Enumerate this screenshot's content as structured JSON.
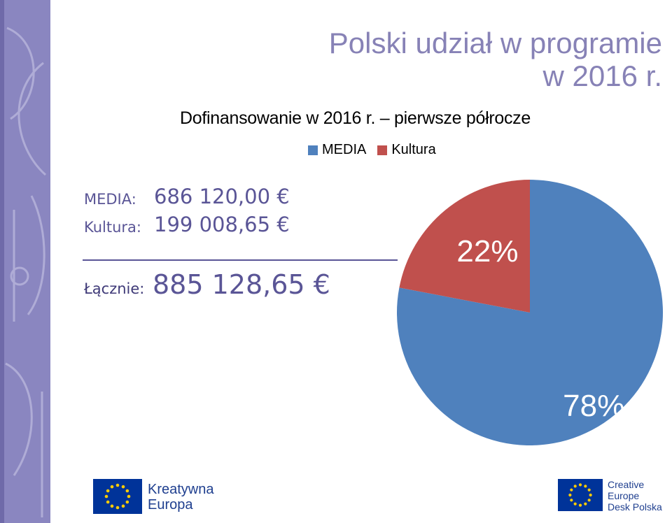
{
  "slide_title_line1": "Polski udział w programie",
  "slide_title_line2": "w 2016 r.",
  "summary": {
    "rows": [
      {
        "label": "MEDIA:",
        "amount": "686 120,00 €"
      },
      {
        "label": "Kultura:",
        "amount": "199 008,65 €"
      }
    ],
    "total_label": "Łącznie:",
    "total_amount": "885 128,65 €"
  },
  "chart_data": {
    "type": "pie",
    "title": "Dofinansowanie w 2016 r. – pierwsze półrocze",
    "legend_position": "top",
    "series": [
      {
        "name": "MEDIA",
        "value": 78,
        "label": "78%",
        "color": "#4f81bd"
      },
      {
        "name": "Kultura",
        "value": 22,
        "label": "22%",
        "color": "#c0504d"
      }
    ]
  },
  "logos": {
    "left": {
      "line1": "Kreatywna",
      "line2": "Europa"
    },
    "right": {
      "line1": "Creative",
      "line2": "Europe",
      "line3": "Desk Polska"
    }
  },
  "colors": {
    "accent": "#8782b6",
    "text_accent": "#5a5596",
    "eu_blue": "#003399",
    "eu_star": "#ffcc00"
  }
}
